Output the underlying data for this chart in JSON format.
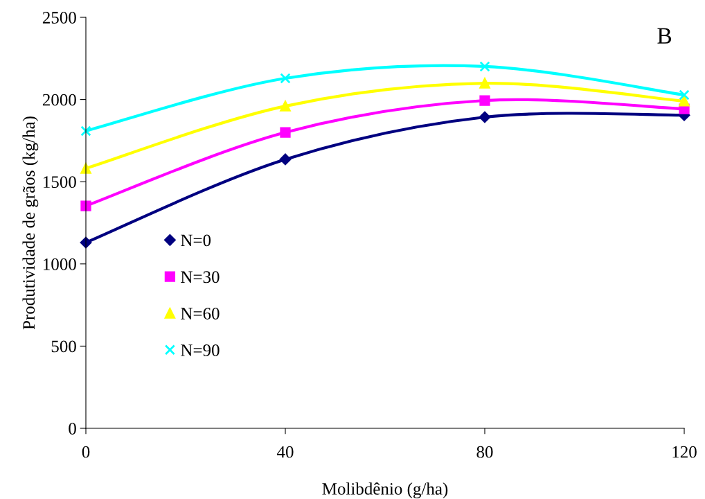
{
  "chart_data": {
    "type": "line",
    "xlabel": "Molibdênio (g/ha)",
    "ylabel": "Produtividade de grãos (kg/ha)",
    "annotations": [
      "B"
    ],
    "x": [
      0,
      40,
      80,
      120
    ],
    "xlim": [
      0,
      120
    ],
    "xticks": [
      0,
      40,
      80,
      120
    ],
    "ylim": [
      0,
      2500
    ],
    "yticks": [
      0,
      500,
      1000,
      1500,
      2000,
      2500
    ],
    "grid": false,
    "legend": "left",
    "series": [
      {
        "name": "N=0",
        "color": "#000080",
        "marker": "diamond",
        "values": [
          1130,
          1636,
          1893,
          1905
        ]
      },
      {
        "name": "N=30",
        "color": "#ff00ff",
        "marker": "square",
        "values": [
          1353,
          1800,
          1994,
          1943
        ]
      },
      {
        "name": "N=60",
        "color": "#ffff00",
        "marker": "triangle",
        "values": [
          1581,
          1960,
          2099,
          1990
        ]
      },
      {
        "name": "N=90",
        "color": "#00ffff",
        "marker": "cross",
        "values": [
          1809,
          2129,
          2201,
          2028
        ]
      }
    ]
  }
}
